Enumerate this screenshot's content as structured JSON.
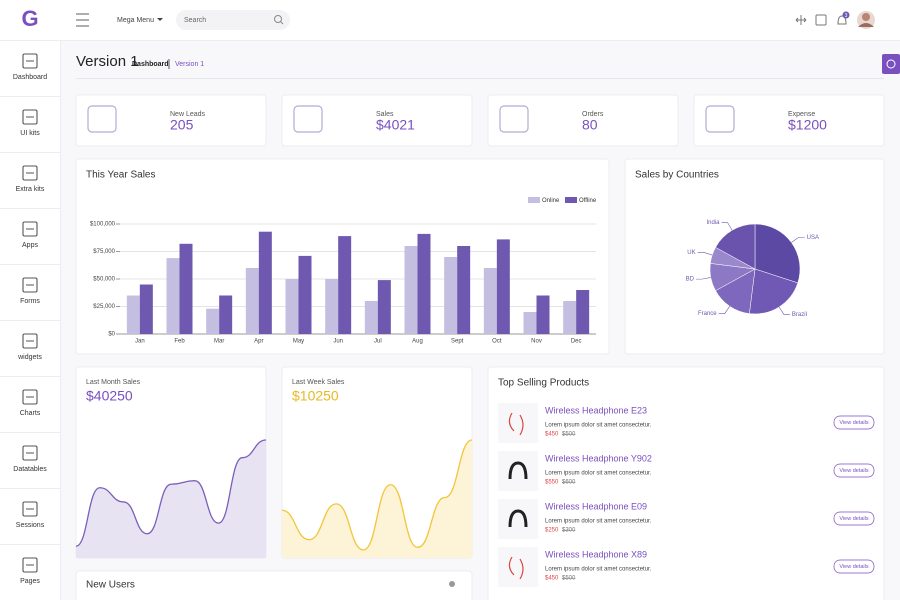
{
  "brand": "G",
  "header": {
    "menu": "Mega Menu",
    "search": "Search",
    "notifications": 3
  },
  "sidebar": [
    "Dashboard",
    "UI kits",
    "Extra kits",
    "Apps",
    "Forms",
    "widgets",
    "Charts",
    "Datatables",
    "Sessions",
    "Pages"
  ],
  "page": {
    "title": "Version 1",
    "breadcrumb": [
      "Dashboard",
      "Version 1"
    ]
  },
  "stats": [
    {
      "label": "New Leads",
      "value": "205"
    },
    {
      "label": "Sales",
      "value": "$4021"
    },
    {
      "label": "Orders",
      "value": "80"
    },
    {
      "label": "Expense",
      "value": "$1200"
    }
  ],
  "chart_data": [
    {
      "type": "bar",
      "title": "This Year Sales",
      "categories": [
        "Jan",
        "Feb",
        "Mar",
        "Apr",
        "May",
        "Jun",
        "Jul",
        "Aug",
        "Sept",
        "Oct",
        "Nov",
        "Dec"
      ],
      "series": [
        {
          "name": "Online",
          "color": "#c4bfe0",
          "values": [
            35000,
            69000,
            23000,
            60000,
            50000,
            50000,
            30000,
            80000,
            70000,
            60000,
            20000,
            30000
          ]
        },
        {
          "name": "Offline",
          "color": "#6f58b0",
          "values": [
            45000,
            82000,
            35000,
            93000,
            71000,
            89000,
            49000,
            91000,
            80000,
            86000,
            35000,
            40000
          ]
        }
      ],
      "ylim": [
        0,
        100000
      ],
      "yticks": [
        {
          "value": 0,
          "label": "$0"
        },
        {
          "value": 25000,
          "label": "$25,000"
        },
        {
          "value": 50000,
          "label": "$50,000"
        },
        {
          "value": 75000,
          "label": "$75,000"
        },
        {
          "value": 100000,
          "label": "$100,000"
        }
      ],
      "grid": true,
      "legend": "top-right"
    },
    {
      "type": "pie",
      "title": "Sales by Countries",
      "categories": [
        "USA",
        "Brazil",
        "France",
        "BD",
        "UK",
        "India"
      ],
      "values": [
        30,
        22,
        15,
        10,
        6,
        17
      ],
      "colors": [
        "#5b49a3",
        "#7059b4",
        "#7e68bd",
        "#8c78c5",
        "#9a88cc",
        "#6a53ad"
      ]
    },
    {
      "type": "area",
      "title": "Last Month Sales",
      "headline": "$40250",
      "color": "#7a5fb8",
      "fill": "#e8e3f3",
      "values": [
        5,
        38,
        30,
        12,
        40,
        42,
        18,
        55,
        65
      ]
    },
    {
      "type": "area",
      "title": "Last Week Sales",
      "headline": "$10250",
      "color": "#f2c53a",
      "fill": "#fdf3d6",
      "values": [
        35,
        12,
        40,
        4,
        55,
        6,
        45,
        90
      ]
    }
  ],
  "products": {
    "title": "Top Selling Products",
    "items": [
      {
        "name": "Wireless Headphone E23",
        "description": "Lorem ipsum dolor sit amet consectetur.",
        "price": "$450",
        "old_price": "$500",
        "button": "View details"
      },
      {
        "name": "Wireless Headphone Y902",
        "description": "Lorem ipsum dolor sit amet consectetur.",
        "price": "$550",
        "old_price": "$600",
        "button": "View details"
      },
      {
        "name": "Wireless Headphone E09",
        "description": "Lorem ipsum dolor sit amet consectetur.",
        "price": "$250",
        "old_price": "$300",
        "button": "View details"
      },
      {
        "name": "Wireless Headphone X89",
        "description": "Lorem ipsum dolor sit amet consectetur.",
        "price": "$450",
        "old_price": "$500",
        "button": "View details"
      }
    ]
  },
  "new_users": {
    "title": "New Users"
  }
}
